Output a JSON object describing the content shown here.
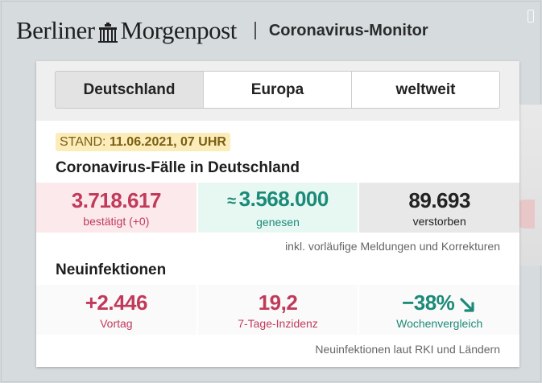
{
  "header": {
    "brand_left": "Berliner",
    "brand_right": "Morgenpost",
    "subtitle": "Coronavirus-Monitor"
  },
  "tabs": [
    {
      "label": "Deutschland",
      "active": true
    },
    {
      "label": "Europa",
      "active": false
    },
    {
      "label": "weltweit",
      "active": false
    }
  ],
  "stand": {
    "prefix": "STAND:",
    "value": "11.06.2021, 07 UHR"
  },
  "cases": {
    "title": "Coronavirus-Fälle in Deutschland",
    "confirmed": {
      "value": "3.718.617",
      "label": "bestätigt (+0)"
    },
    "recovered": {
      "prefix": "≈",
      "value": "3.568.000",
      "label": "genesen"
    },
    "deaths": {
      "value": "89.693",
      "label": "verstorben"
    },
    "note": "inkl. vorläufige Meldungen und Korrekturen"
  },
  "new_infections": {
    "title": "Neuinfektionen",
    "previous_day": {
      "value": "+2.446",
      "label": "Vortag"
    },
    "incidence": {
      "value": "19,2",
      "label": "7-Tage-Inzidenz"
    },
    "weekly": {
      "value": "−38%",
      "label": "Wochenvergleich",
      "trend_icon": "arrow-down-right-icon"
    },
    "note": "Neuinfektionen laut RKI und Ländern"
  },
  "colors": {
    "red": "#c23a5a",
    "green": "#1c8a78",
    "stand_bg": "#fbecb9"
  }
}
